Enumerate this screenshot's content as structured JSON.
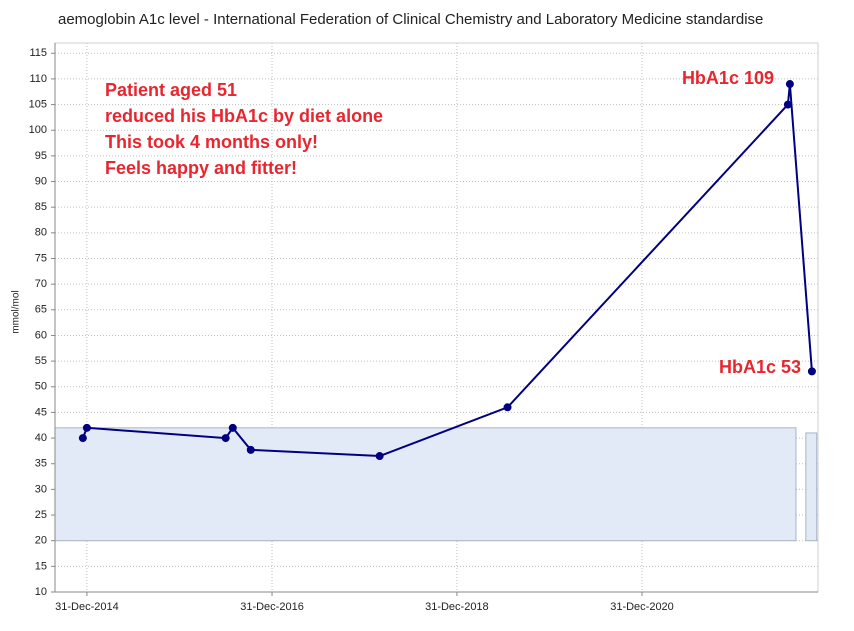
{
  "chart_data": {
    "type": "line",
    "title": "aemoglobin A1c level - International Federation of Clinical Chemistry and Laboratory Medicine standardise",
    "y_label": "mmol/mol",
    "x": [
      "2014-12-15",
      "2014-12-31",
      "2016-07-01",
      "2016-07-29",
      "2016-10-08",
      "2018-03-01",
      "2019-07-19",
      "2022-07-30",
      "2022-08-07",
      "2022-11-02"
    ],
    "series": [
      {
        "name": "HbA1c",
        "color": "#000080",
        "values": [
          40,
          42,
          40,
          42,
          37.7,
          36.5,
          46,
          105,
          109,
          53
        ]
      }
    ],
    "reference_ranges": [
      {
        "start": "2014-08-27",
        "end": "2022-08-31",
        "low": 20,
        "high": 42
      },
      {
        "start": "2022-10-09",
        "end": "2022-11-21",
        "low": 20,
        "high": 41
      }
    ],
    "reference_color": "#e3eaf7",
    "xlim": [
      "2014-08-27",
      "2022-11-26"
    ],
    "xticks": [
      {
        "value": "2014-12-31",
        "label": "31-Dec-2014"
      },
      {
        "value": "2016-12-31",
        "label": "31-Dec-2016"
      },
      {
        "value": "2018-12-31",
        "label": "31-Dec-2018"
      },
      {
        "value": "2020-12-31",
        "label": "31-Dec-2020"
      }
    ],
    "ylim": [
      10,
      117
    ],
    "yticks": [
      10,
      15,
      20,
      25,
      30,
      35,
      40,
      45,
      50,
      55,
      60,
      65,
      70,
      75,
      80,
      85,
      90,
      95,
      100,
      105,
      110,
      115
    ],
    "grid": true,
    "annotations": [
      "Patient aged 51",
      "reduced his HbA1c by diet alone",
      "This took 4 months only!",
      "Feels happy and fitter!"
    ],
    "point_labels": [
      "HbA1c 109",
      "HbA1c 53"
    ]
  }
}
